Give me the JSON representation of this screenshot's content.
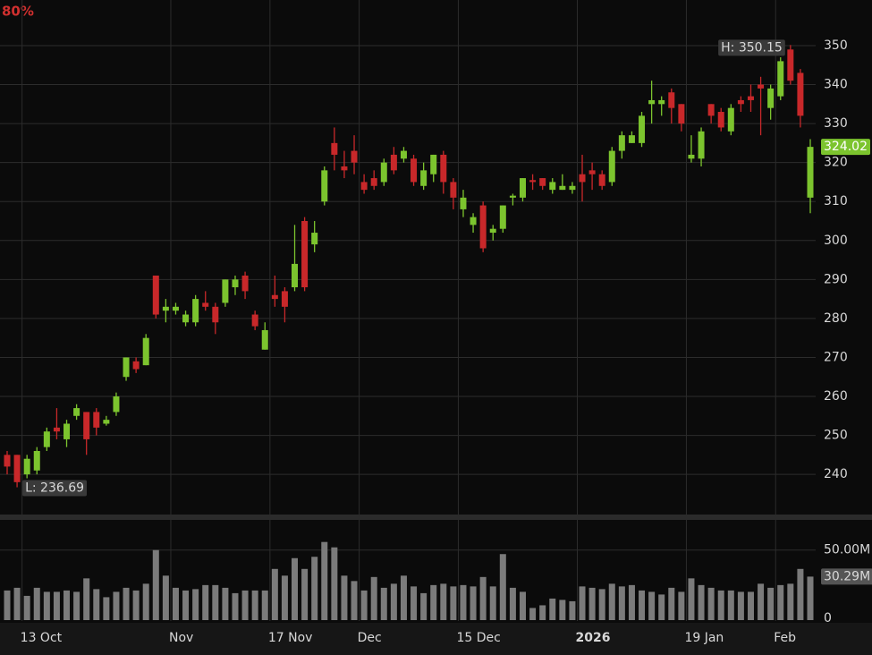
{
  "chart_data": {
    "type": "candlestick",
    "corner_text": "80%",
    "categories": [
      null,
      null,
      "13 Oct",
      null,
      null,
      null,
      null,
      null,
      null,
      null,
      null,
      null,
      null,
      null,
      null,
      null,
      null,
      "Nov",
      null,
      null,
      null,
      null,
      null,
      null,
      null,
      null,
      null,
      "17 Nov",
      null,
      null,
      null,
      null,
      null,
      null,
      null,
      null,
      "Dec",
      null,
      null,
      null,
      null,
      null,
      null,
      null,
      null,
      null,
      "15 Dec",
      null,
      null,
      null,
      null,
      null,
      null,
      null,
      null,
      null,
      null,
      null,
      "2026",
      null,
      null,
      null,
      null,
      null,
      null,
      null,
      null,
      null,
      null,
      "19 Jan",
      null,
      null,
      null,
      null,
      null,
      null,
      null,
      null,
      "Feb",
      null,
      null,
      null
    ],
    "open": [
      245,
      245,
      240,
      241,
      247,
      252,
      249,
      255,
      256,
      256,
      253,
      256,
      265,
      269,
      268,
      291,
      282,
      282,
      279,
      279,
      284,
      283,
      284,
      288,
      291,
      281,
      272,
      286,
      287,
      288,
      305,
      299,
      310,
      325,
      319,
      323,
      315,
      316,
      315,
      322,
      321,
      321,
      314,
      317,
      322,
      315,
      308,
      304,
      309,
      302,
      303,
      311,
      311,
      315.5,
      316,
      313,
      313,
      313,
      317,
      318,
      317,
      315,
      323,
      325,
      325,
      335,
      335,
      338,
      335,
      321,
      321,
      335,
      333,
      328,
      336,
      337,
      340,
      334,
      337,
      349,
      343,
      311
    ],
    "high": [
      246,
      245,
      245,
      247,
      252,
      257,
      254,
      258,
      256,
      257,
      255,
      261,
      270,
      270,
      276,
      291,
      285,
      284,
      282,
      286,
      287,
      284,
      290,
      291,
      292,
      282,
      279,
      291,
      288,
      304,
      306,
      305,
      319,
      329,
      323,
      327,
      317,
      318,
      321,
      324,
      324,
      322,
      320,
      322,
      323,
      316,
      313,
      307,
      310,
      304,
      309,
      312,
      316,
      317,
      316,
      316,
      317,
      315,
      322,
      320,
      318,
      324,
      328,
      328,
      333,
      341,
      337,
      339,
      335,
      327,
      329,
      335,
      334,
      335,
      337,
      340,
      342,
      340,
      347,
      350.15,
      344,
      326
    ],
    "low": [
      240,
      236.69,
      239,
      240,
      246,
      249,
      247,
      254,
      245,
      250,
      252.5,
      255,
      264,
      266,
      268,
      280,
      279,
      281,
      278,
      278,
      282,
      276,
      283,
      286,
      285,
      277,
      272,
      283,
      279,
      287,
      287,
      297,
      309,
      318,
      316,
      317,
      312,
      313,
      314,
      317,
      320,
      314,
      313,
      315,
      312,
      308,
      306,
      302,
      297,
      300,
      302,
      309,
      310,
      313,
      313,
      312,
      313,
      312,
      310,
      313,
      313,
      314,
      321,
      325,
      324,
      330,
      332,
      330,
      328,
      320,
      319,
      330,
      328,
      327,
      333,
      333,
      327,
      331,
      336,
      340,
      329,
      307
    ],
    "close": [
      242,
      238,
      244,
      246,
      251,
      251,
      253,
      257,
      249,
      252,
      254,
      260,
      270,
      267,
      275,
      281,
      283,
      283,
      281,
      285,
      283,
      279,
      290,
      290,
      287,
      278,
      277,
      285,
      283,
      294,
      288,
      302,
      318,
      322,
      318,
      320,
      313,
      314,
      320,
      318,
      323,
      315,
      318,
      322,
      315,
      311,
      311,
      306,
      298,
      303,
      309,
      311.5,
      316,
      315,
      314,
      315,
      314,
      314,
      315,
      317,
      314,
      323,
      327,
      327,
      332,
      336,
      336,
      334,
      330,
      322,
      328,
      332,
      329,
      334,
      335,
      336,
      339,
      339,
      346,
      341,
      332,
      324.02
    ],
    "volume": [
      20,
      22,
      16,
      22,
      19,
      19,
      20,
      19,
      29,
      21,
      15,
      19,
      22,
      20,
      25,
      50,
      31,
      22,
      20,
      21,
      24,
      24,
      22,
      18,
      20,
      20,
      20,
      36,
      31,
      44,
      36,
      45,
      56,
      52,
      31,
      27,
      20,
      30,
      22,
      25,
      31,
      23,
      18,
      24,
      25,
      23,
      24,
      23,
      30,
      23,
      47,
      22,
      19,
      7,
      9,
      14,
      13,
      12,
      23,
      22,
      21,
      25,
      23,
      24,
      20,
      19,
      17,
      22,
      19,
      29,
      24,
      22,
      20,
      20,
      19,
      19,
      25,
      22,
      24,
      25,
      36,
      30.29
    ],
    "last_volume_label": "30.29M",
    "high_label": "H: 350.15",
    "low_label": "L: 236.69",
    "up_color": "#7cc42e",
    "down_color": "#c8282a",
    "volume_color": "#7b7b7b",
    "ylim": [
      229.7,
      361.7
    ],
    "yticks": [
      240,
      250,
      260,
      270,
      280,
      290,
      300,
      310,
      320,
      330,
      340,
      350
    ],
    "volume_ylim": [
      0,
      72.4
    ],
    "volume_ticks": [
      0,
      {
        "value": 50,
        "label": "50.00M"
      }
    ],
    "grid": true
  }
}
